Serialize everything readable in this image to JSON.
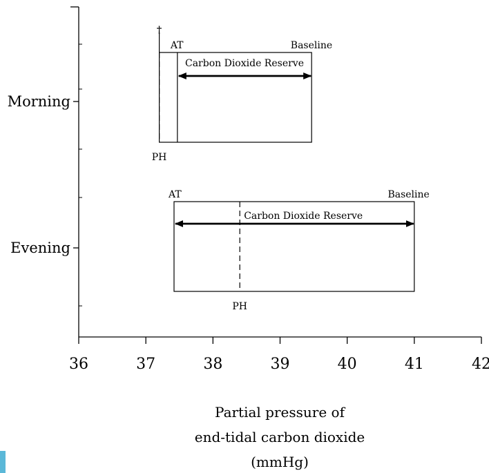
{
  "chart_data": {
    "type": "range-diagram",
    "title": "",
    "xlabel_lines": [
      "Partial pressure of",
      "end-tidal carbon dioxide",
      "(mmHg)"
    ],
    "xlim": [
      36,
      42
    ],
    "xticks": [
      36,
      37,
      38,
      39,
      40,
      41,
      42
    ],
    "xtick_labels": [
      "36",
      "37",
      "38",
      "39",
      "40",
      "41",
      "42"
    ],
    "rows": [
      {
        "label": "Morning",
        "ph": 37.2,
        "at": 37.47,
        "baseline": 39.47,
        "ph_label": "PH",
        "at_label": "AT",
        "baseline_label": "Baseline",
        "reserve_label": "Carbon Dioxide Reserve",
        "dagger": "†"
      },
      {
        "label": "Evening",
        "ph": 38.4,
        "at": 37.42,
        "baseline": 41.0,
        "ph_label": "PH",
        "at_label": "AT",
        "baseline_label": "Baseline",
        "reserve_label": "Carbon Dioxide Reserve",
        "dagger": ""
      }
    ],
    "colors": {
      "line": "#000000",
      "accent": "#5bb8d8"
    }
  }
}
